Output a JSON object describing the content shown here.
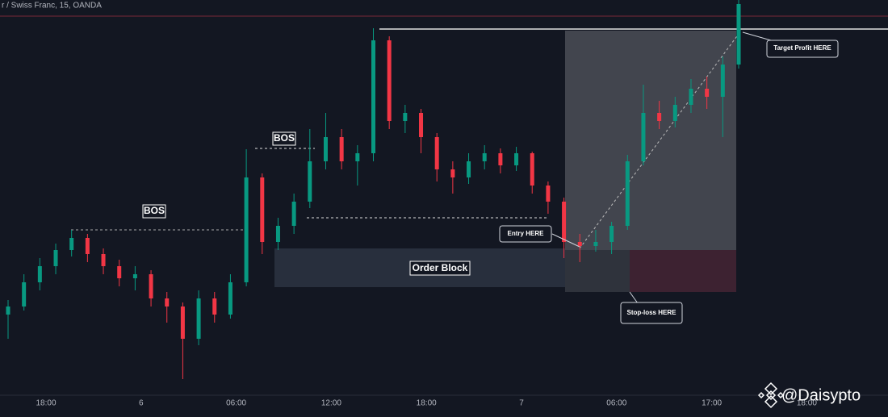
{
  "chart_data": {
    "type": "candlestick",
    "title": "r / Swiss Franc, 15, OANDA",
    "up_color": "#089981",
    "down_color": "#f23645",
    "ylim": [
      0,
      490
    ],
    "open": [
      100,
      110,
      140,
      160,
      180,
      195,
      175,
      160,
      145,
      150,
      120,
      110,
      70,
      120,
      100,
      140,
      270,
      190,
      210,
      240,
      290,
      320,
      290,
      300,
      440,
      340,
      350,
      320,
      280,
      270,
      290,
      300,
      285,
      300,
      260,
      240,
      190,
      185,
      190,
      210,
      290,
      350,
      340,
      360,
      380,
      370,
      410
    ],
    "high": [
      118,
      150,
      170,
      188,
      205,
      200,
      182,
      168,
      160,
      155,
      128,
      115,
      130,
      128,
      150,
      305,
      275,
      220,
      250,
      330,
      350,
      330,
      310,
      455,
      445,
      360,
      355,
      325,
      290,
      300,
      310,
      306,
      308,
      302,
      265,
      245,
      200,
      205,
      215,
      298,
      385,
      365,
      370,
      392,
      395,
      420,
      490
    ],
    "low": [
      70,
      105,
      130,
      150,
      172,
      165,
      150,
      135,
      130,
      110,
      90,
      20,
      62,
      90,
      95,
      135,
      175,
      180,
      200,
      232,
      280,
      280,
      260,
      290,
      330,
      325,
      300,
      265,
      250,
      262,
      280,
      275,
      278,
      250,
      225,
      170,
      165,
      178,
      175,
      205,
      285,
      330,
      332,
      350,
      355,
      320,
      405
    ],
    "close": [
      110,
      140,
      160,
      180,
      195,
      175,
      160,
      145,
      150,
      120,
      110,
      70,
      120,
      100,
      140,
      270,
      190,
      210,
      240,
      290,
      320,
      290,
      300,
      440,
      340,
      350,
      320,
      280,
      270,
      290,
      300,
      285,
      300,
      260,
      240,
      190,
      185,
      190,
      210,
      290,
      350,
      340,
      360,
      380,
      370,
      410,
      485
    ],
    "x_tick_labels": [
      "18:00",
      "6",
      "06:00",
      "12:00",
      "18:00",
      "7",
      "06:00",
      "17:00",
      "18:00"
    ],
    "annotations": {
      "bos_1": "BOS",
      "bos_2": "BOS",
      "order_block": "Order Block",
      "entry": "Entry HERE",
      "target": "Target Profit HERE",
      "stop": "Stop-loss HERE"
    },
    "watermark": "@Daisypto"
  }
}
